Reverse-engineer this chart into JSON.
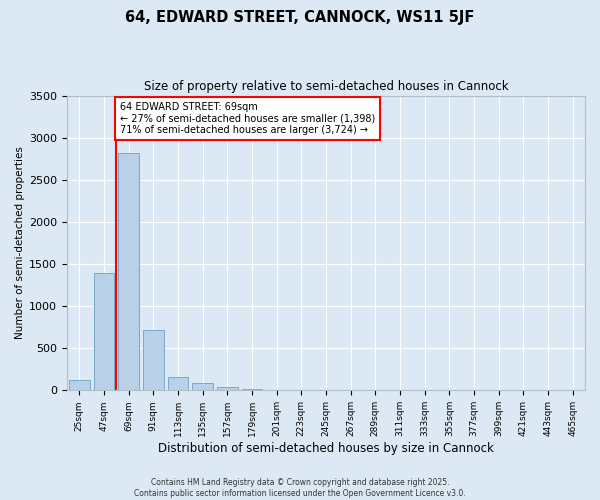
{
  "title_line1": "64, EDWARD STREET, CANNOCK, WS11 5JF",
  "title_line2": "Size of property relative to semi-detached houses in Cannock",
  "xlabel": "Distribution of semi-detached houses by size in Cannock",
  "ylabel": "Number of semi-detached properties",
  "categories": [
    "25sqm",
    "47sqm",
    "69sqm",
    "91sqm",
    "113sqm",
    "135sqm",
    "157sqm",
    "179sqm",
    "201sqm",
    "223sqm",
    "245sqm",
    "267sqm",
    "289sqm",
    "311sqm",
    "333sqm",
    "355sqm",
    "377sqm",
    "399sqm",
    "421sqm",
    "443sqm",
    "465sqm"
  ],
  "values": [
    120,
    1390,
    2820,
    720,
    155,
    90,
    35,
    20,
    0,
    0,
    0,
    0,
    0,
    0,
    0,
    0,
    0,
    0,
    0,
    0,
    0
  ],
  "bar_color": "#b8d0e8",
  "bar_edgecolor": "#7aaac8",
  "red_line_index": 2,
  "annotation_text": "64 EDWARD STREET: 69sqm\n← 27% of semi-detached houses are smaller (1,398)\n71% of semi-detached houses are larger (3,724) →",
  "annotation_box_color": "white",
  "annotation_box_edgecolor": "red",
  "ylim": [
    0,
    3500
  ],
  "yticks": [
    0,
    500,
    1000,
    1500,
    2000,
    2500,
    3000,
    3500
  ],
  "background_color": "#dce8f4",
  "grid_color": "white",
  "footnote": "Contains HM Land Registry data © Crown copyright and database right 2025.\nContains public sector information licensed under the Open Government Licence v3.0."
}
